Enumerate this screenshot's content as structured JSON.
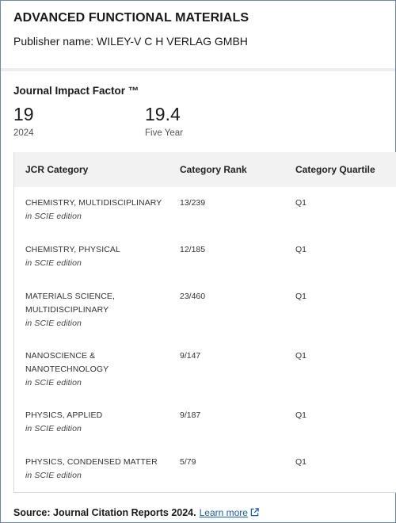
{
  "journal": {
    "title": "ADVANCED FUNCTIONAL MATERIALS",
    "publisher": "Publisher name: WILEY-V C H VERLAG GMBH"
  },
  "jif": {
    "heading": "Journal Impact Factor ™",
    "value": "19",
    "year": "2024",
    "five_year_value": "19.4",
    "five_year_label": "Five Year"
  },
  "table": {
    "headers": [
      "JCR Category",
      "Category Rank",
      "Category Quartile"
    ],
    "rows": [
      {
        "category": "CHEMISTRY, MULTIDISCIPLINARY",
        "edition": "in SCIE edition",
        "rank": "13/239",
        "quartile": "Q1"
      },
      {
        "category": "CHEMISTRY, PHYSICAL",
        "edition": "in SCIE edition",
        "rank": "12/185",
        "quartile": "Q1"
      },
      {
        "category": "MATERIALS SCIENCE,\nMULTIDISCIPLINARY",
        "edition": "in SCIE edition",
        "rank": "23/460",
        "quartile": "Q1"
      },
      {
        "category": "NANOSCIENCE &\nNANOTECHNOLOGY",
        "edition": "in SCIE edition",
        "rank": "9/147",
        "quartile": "Q1"
      },
      {
        "category": "PHYSICS, APPLIED",
        "edition": "in SCIE edition",
        "rank": "9/187",
        "quartile": "Q1"
      },
      {
        "category": "PHYSICS, CONDENSED MATTER",
        "edition": "in SCIE edition",
        "rank": "5/79",
        "quartile": "Q1"
      }
    ]
  },
  "footer": {
    "source": "Source: Journal Citation Reports  2024.",
    "learn_more": "Learn more",
    "icon": "external-link-icon",
    "link_color": "#1f5fa8"
  }
}
